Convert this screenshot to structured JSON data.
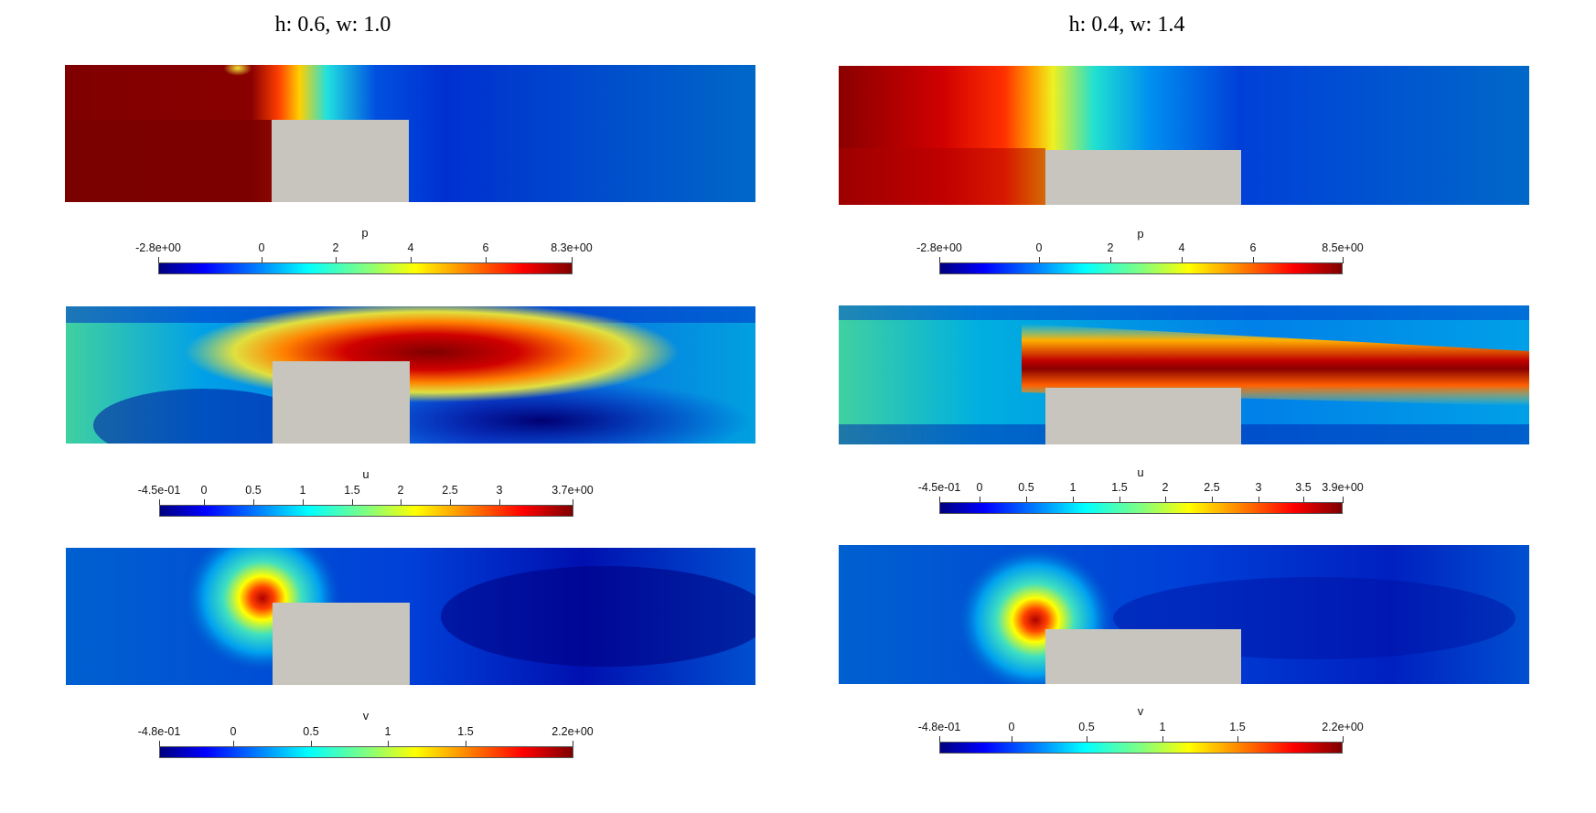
{
  "colors": {
    "obstacle": "#c8c5be",
    "jet_stops": [
      "#00007f",
      "#0000ff",
      "#0080ff",
      "#00ffff",
      "#80ff80",
      "#ffff00",
      "#ff8000",
      "#ff0000",
      "#7f0000"
    ]
  },
  "chart_data": [
    {
      "type": "heatmap",
      "title": "h: 0.6, w: 1.0",
      "panels": [
        {
          "variable": "p",
          "range": [
            -2.8,
            8.3
          ],
          "tick_labels": [
            "-2.8e+00",
            "0",
            "2",
            "4",
            "6",
            "8.3e+00"
          ],
          "tick_values": [
            -2.8,
            0,
            2,
            4,
            6,
            8.3
          ]
        },
        {
          "variable": "u",
          "range": [
            -0.45,
            3.7
          ],
          "tick_labels": [
            "-4.5e-01",
            "0",
            "0.5",
            "1",
            "1.5",
            "2",
            "2.5",
            "3",
            "3.7e+00"
          ],
          "tick_values": [
            -0.45,
            0,
            0.5,
            1,
            1.5,
            2,
            2.5,
            3,
            3.7
          ]
        },
        {
          "variable": "v",
          "range": [
            -0.48,
            2.2
          ],
          "tick_labels": [
            "-4.8e-01",
            "0",
            "0.5",
            "1",
            "1.5",
            "2.2e+00"
          ],
          "tick_values": [
            -0.48,
            0,
            0.5,
            1,
            1.5,
            2.2
          ]
        }
      ]
    },
    {
      "type": "heatmap",
      "title": "h: 0.4, w: 1.4",
      "panels": [
        {
          "variable": "p",
          "range": [
            -2.8,
            8.5
          ],
          "tick_labels": [
            "-2.8e+00",
            "0",
            "2",
            "4",
            "6",
            "8.5e+00"
          ],
          "tick_values": [
            -2.8,
            0,
            2,
            4,
            6,
            8.5
          ]
        },
        {
          "variable": "u",
          "range": [
            -0.45,
            3.9
          ],
          "tick_labels": [
            "-4.5e-01",
            "0",
            "0.5",
            "1",
            "1.5",
            "2",
            "2.5",
            "3",
            "3.5",
            "3.9e+00"
          ],
          "tick_values": [
            -0.45,
            0,
            0.5,
            1,
            1.5,
            2,
            2.5,
            3,
            3.5,
            3.9
          ]
        },
        {
          "variable": "v",
          "range": [
            -0.48,
            2.2
          ],
          "tick_labels": [
            "-4.8e-01",
            "0",
            "0.5",
            "1",
            "1.5",
            "2.2e+00"
          ],
          "tick_values": [
            -0.48,
            0,
            0.5,
            1,
            1.5,
            2.2
          ]
        }
      ]
    }
  ]
}
